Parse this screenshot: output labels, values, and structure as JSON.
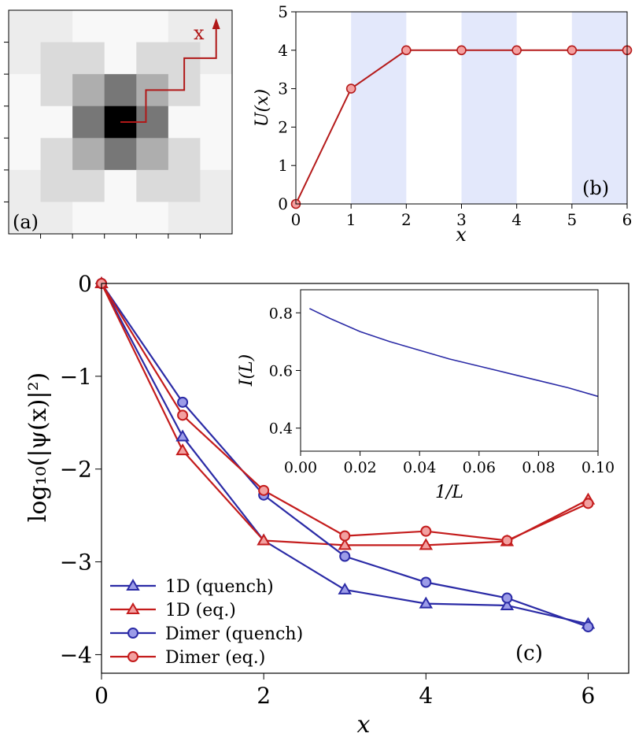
{
  "chart_data": [
    {
      "panel": "a",
      "type": "heatmap",
      "panel_label": "(a)",
      "path_label": "x",
      "grid_size": 7,
      "cells": [
        [
          0.05,
          0.05,
          0.0,
          0.0,
          0.0,
          0.05,
          0.05
        ],
        [
          0.05,
          0.12,
          0.12,
          0.0,
          0.12,
          0.12,
          0.05
        ],
        [
          0.0,
          0.12,
          0.3,
          0.52,
          0.3,
          0.12,
          0.0
        ],
        [
          0.0,
          0.0,
          0.52,
          1.0,
          0.52,
          0.0,
          0.0
        ],
        [
          0.0,
          0.12,
          0.3,
          0.52,
          0.3,
          0.12,
          0.0
        ],
        [
          0.05,
          0.12,
          0.12,
          0.0,
          0.12,
          0.12,
          0.05
        ],
        [
          0.05,
          0.05,
          0.0,
          0.0,
          0.0,
          0.05,
          0.05
        ]
      ],
      "path_color": "#b01818"
    },
    {
      "panel": "b",
      "type": "line",
      "panel_label": "(b)",
      "xlabel": "x",
      "ylabel": "U(x)",
      "x": [
        0,
        1,
        2,
        3,
        4,
        5,
        6
      ],
      "y": [
        0,
        3,
        4,
        4,
        4,
        4,
        4
      ],
      "xlim": [
        0,
        6
      ],
      "ylim": [
        0,
        5
      ],
      "xticks": [
        "0",
        "1",
        "2",
        "3",
        "4",
        "5",
        "6"
      ],
      "yticks": [
        "0",
        "1",
        "2",
        "3",
        "4",
        "5"
      ],
      "shaded_intervals": [
        [
          1,
          2
        ],
        [
          3,
          4
        ],
        [
          5,
          6
        ]
      ],
      "shade_color": "#e3e8fb",
      "line_color": "#b51b1b",
      "marker_fill": "#f4a0a0"
    },
    {
      "panel": "c",
      "type": "line",
      "panel_label": "(c)",
      "xlabel": "x",
      "ylabel": "log₁₀(|ψ(x)|²)",
      "xlim": [
        0,
        6.5
      ],
      "ylim": [
        -4.2,
        0
      ],
      "xticks": [
        "0",
        "2",
        "4",
        "6"
      ],
      "yticks": [
        "0",
        "−1",
        "−2",
        "−3",
        "−4"
      ],
      "legend_position": "bottom-left",
      "series": [
        {
          "name": "1D (quench)",
          "marker": "triangle",
          "color": "#2b2ba6",
          "fill": "#9c9ce8",
          "x": [
            0,
            1,
            2,
            3,
            4,
            5,
            6
          ],
          "y": [
            0,
            -1.65,
            -2.77,
            -3.3,
            -3.45,
            -3.47,
            -3.67
          ]
        },
        {
          "name": "1D (eq.)",
          "marker": "triangle",
          "color": "#c41c1c",
          "fill": "#f2a0a0",
          "x": [
            0,
            1,
            2,
            3,
            4,
            5,
            6
          ],
          "y": [
            0,
            -1.8,
            -2.77,
            -2.82,
            -2.82,
            -2.78,
            -2.33
          ]
        },
        {
          "name": "Dimer (quench)",
          "marker": "circle",
          "color": "#2b2ba6",
          "fill": "#9c9ce8",
          "x": [
            0,
            1,
            2,
            3,
            4,
            5,
            6
          ],
          "y": [
            0,
            -1.28,
            -2.28,
            -2.94,
            -3.22,
            -3.39,
            -3.7
          ]
        },
        {
          "name": "Dimer (eq.)",
          "marker": "circle",
          "color": "#c41c1c",
          "fill": "#f2a0a0",
          "x": [
            0,
            1,
            2,
            3,
            4,
            5,
            6
          ],
          "y": [
            0,
            -1.42,
            -2.23,
            -2.72,
            -2.67,
            -2.77,
            -2.37
          ]
        }
      ],
      "inset": {
        "type": "line",
        "xlabel": "1/L",
        "ylabel": "I(L)",
        "xlim": [
          0,
          0.1
        ],
        "ylim": [
          0.32,
          0.88
        ],
        "xticks": [
          "0.00",
          "0.02",
          "0.04",
          "0.06",
          "0.08",
          "0.10"
        ],
        "xtick_values": [
          0,
          0.02,
          0.04,
          0.06,
          0.08,
          0.1
        ],
        "yticks": [
          "0.4",
          "0.6",
          "0.8"
        ],
        "ytick_values": [
          0.4,
          0.6,
          0.8
        ],
        "color": "#2b2ba6",
        "x": [
          0.003,
          0.01,
          0.02,
          0.03,
          0.04,
          0.05,
          0.06,
          0.07,
          0.08,
          0.09,
          0.1
        ],
        "y": [
          0.815,
          0.78,
          0.735,
          0.7,
          0.67,
          0.64,
          0.615,
          0.59,
          0.565,
          0.54,
          0.51
        ]
      }
    }
  ]
}
